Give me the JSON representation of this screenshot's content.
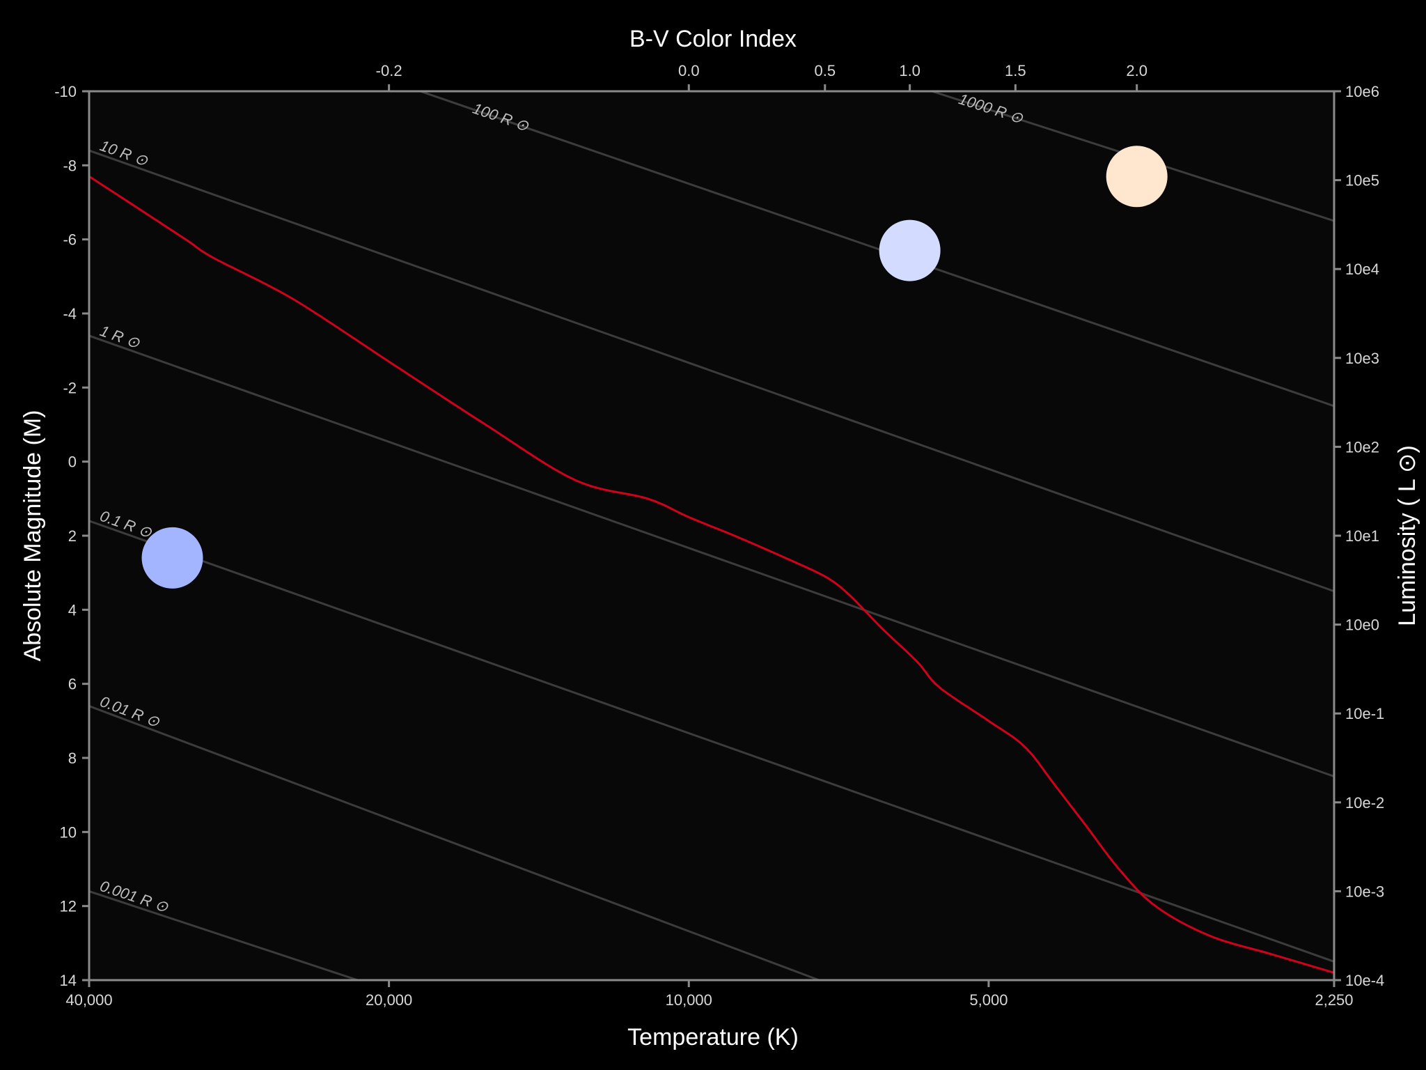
{
  "chart_data": {
    "type": "scatter",
    "title": "",
    "x_axis_bottom": {
      "label": "Temperature (K)",
      "scale": "log",
      "range": [
        40000,
        2250
      ],
      "ticks": [
        {
          "value": 40000,
          "label": "40,000"
        },
        {
          "value": 20000,
          "label": "20,000"
        },
        {
          "value": 10000,
          "label": "10,000"
        },
        {
          "value": 5000,
          "label": "5,000"
        },
        {
          "value": 2250,
          "label": "2,250"
        }
      ]
    },
    "x_axis_top": {
      "label": "B-V Color Index",
      "ticks": [
        {
          "temp": 20000,
          "label": "-0.2"
        },
        {
          "temp": 10000,
          "label": "0.0"
        },
        {
          "temp": 7300,
          "label": "0.5"
        },
        {
          "temp": 6000,
          "label": "1.0"
        },
        {
          "temp": 4700,
          "label": "1.5"
        },
        {
          "temp": 3550,
          "label": "2.0"
        }
      ]
    },
    "y_axis_left": {
      "label": "Absolute Magnitude (M)",
      "range": [
        -10,
        14
      ],
      "ticks": [
        -10,
        -8,
        -6,
        -4,
        -2,
        0,
        2,
        4,
        6,
        8,
        10,
        12,
        14
      ]
    },
    "y_axis_right": {
      "label": "Luminosity ( L ⊙)",
      "scale": "log",
      "ticks": [
        "10e6",
        "10e5",
        "10e4",
        "10e3",
        "10e2",
        "10e1",
        "10e0",
        "10e-1",
        "10e-2",
        "10e-3",
        "10e-4"
      ]
    },
    "radius_lines": [
      {
        "label": "0.001 R ⊙",
        "points": [
          [
            40000,
            11.6
          ],
          [
            21500,
            14
          ]
        ]
      },
      {
        "label": "0.01 R ⊙",
        "points": [
          [
            40000,
            6.6
          ],
          [
            7400,
            14
          ]
        ]
      },
      {
        "label": "0.1 R ⊙",
        "points": [
          [
            40000,
            1.6
          ],
          [
            2250,
            13.5
          ]
        ]
      },
      {
        "label": "1 R ⊙",
        "points": [
          [
            40000,
            -3.4
          ],
          [
            2250,
            8.5
          ]
        ]
      },
      {
        "label": "10 R ⊙",
        "points": [
          [
            40000,
            -8.4
          ],
          [
            2250,
            3.5
          ]
        ]
      },
      {
        "label": "100 R ⊙",
        "points": [
          [
            18600,
            -10
          ],
          [
            2250,
            -1.5
          ]
        ]
      },
      {
        "label": "1000 R ⊙",
        "points": [
          [
            5700,
            -10
          ],
          [
            2250,
            -6.5
          ]
        ]
      }
    ],
    "main_sequence": {
      "color": "#d0021b",
      "points": [
        [
          40000,
          -7.7
        ],
        [
          36000,
          -6.9
        ],
        [
          32000,
          -6.0
        ],
        [
          30000,
          -5.5
        ],
        [
          25000,
          -4.4
        ],
        [
          20000,
          -2.7
        ],
        [
          16000,
          -1.0
        ],
        [
          13000,
          0.5
        ],
        [
          11000,
          1.0
        ],
        [
          10000,
          1.5
        ],
        [
          9000,
          2.0
        ],
        [
          8000,
          2.6
        ],
        [
          7300,
          3.1
        ],
        [
          6900,
          3.6
        ],
        [
          6400,
          4.5
        ],
        [
          5900,
          5.4
        ],
        [
          5600,
          6.1
        ],
        [
          5000,
          7.0
        ],
        [
          4600,
          7.7
        ],
        [
          4300,
          8.7
        ],
        [
          4000,
          9.8
        ],
        [
          3700,
          11.0
        ],
        [
          3400,
          12.0
        ],
        [
          3000,
          12.8
        ],
        [
          2600,
          13.3
        ],
        [
          2250,
          13.8
        ]
      ]
    },
    "stars": [
      {
        "temp": 33000,
        "mag": 2.6,
        "color": "#a3b5ff"
      },
      {
        "temp": 6000,
        "mag": -5.7,
        "color": "#d3dcff"
      },
      {
        "temp": 3550,
        "mag": -7.7,
        "color": "#ffe6cf"
      }
    ],
    "grid": false,
    "colors": {
      "background": "#000000",
      "plot_background": "#080808",
      "axis": "#8a8a8a",
      "radius_line": "#3c3c3c"
    }
  }
}
